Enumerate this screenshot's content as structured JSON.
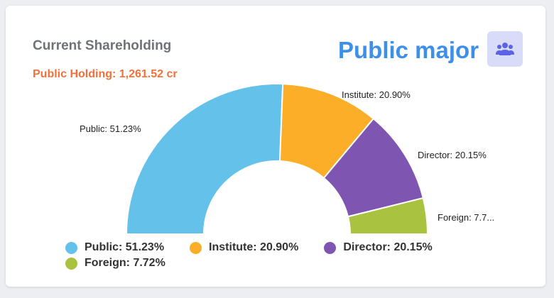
{
  "card": {
    "title": "Current Shareholding",
    "holding_text": "Public Holding: 1,261.52 cr",
    "headline": "Public major",
    "icon": "users-group-icon",
    "accent": "#3d8fe8",
    "holding_color": "#f4703a"
  },
  "chart_data": {
    "type": "pie",
    "variant": "semi-donut",
    "slices": [
      {
        "name": "Public",
        "value": 51.23,
        "label": "Public: 51.23%",
        "legend": "Public: 51.23%",
        "color": "#63c1ea"
      },
      {
        "name": "Institute",
        "value": 20.9,
        "label": "Institute: 20.90%",
        "legend": "Institute: 20.90%",
        "color": "#fcae28"
      },
      {
        "name": "Director",
        "value": 20.15,
        "label": "Director: 20.15%",
        "legend": "Director: 20.15%",
        "color": "#7e55b1"
      },
      {
        "name": "Foreign",
        "value": 7.72,
        "label": "Foreign: 7.7...",
        "legend": "Foreign: 7.72%",
        "color": "#a9c23f"
      }
    ],
    "legend_position": "bottom"
  }
}
